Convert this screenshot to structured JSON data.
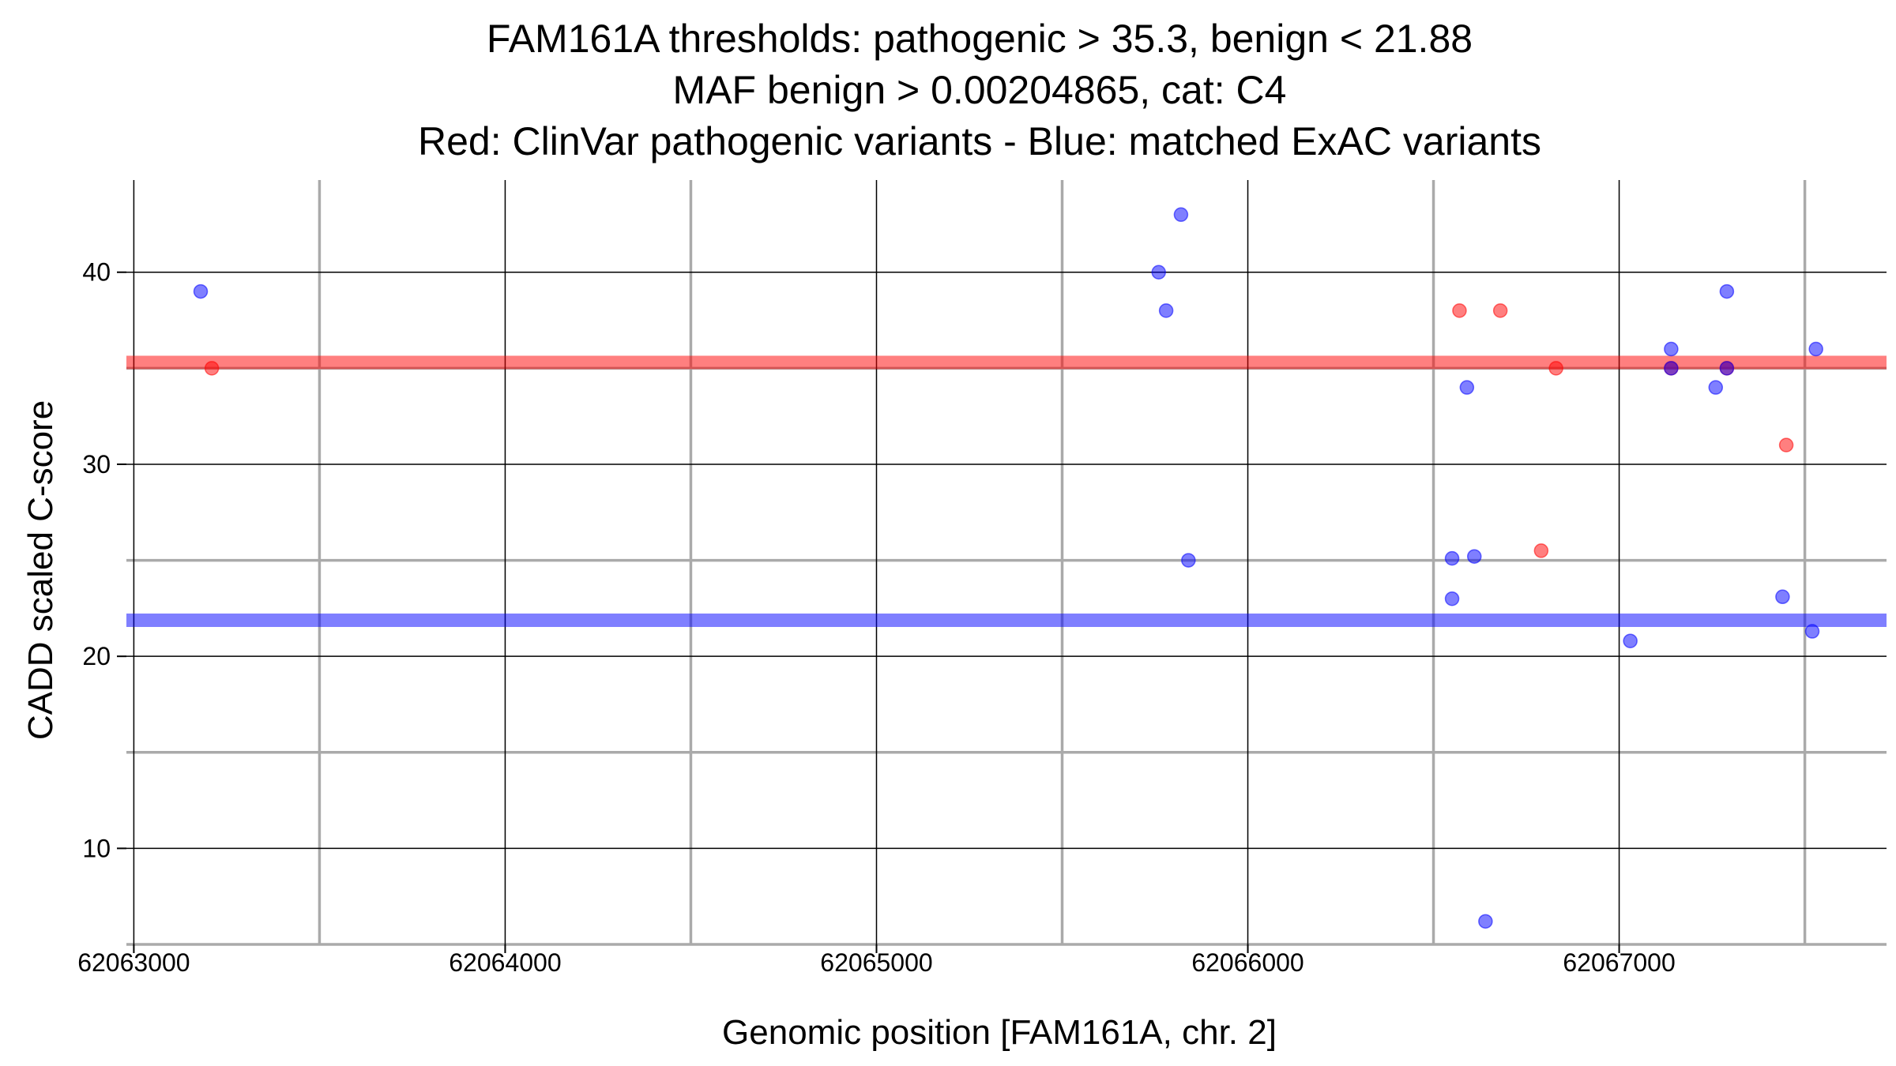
{
  "chart_data": {
    "type": "scatter",
    "title": [
      "FAM161A thresholds: pathogenic > 35.3, benign < 21.88",
      "MAF benign > 0.00204865, cat: C4",
      "Red: ClinVar pathogenic variants - Blue: matched ExAC variants"
    ],
    "xlabel": "Genomic position [FAM161A, chr. 2]",
    "ylabel": "CADD scaled C-score",
    "xlim": [
      62062980,
      62067720
    ],
    "ylim": [
      5,
      44.8
    ],
    "x_ticks": [
      62063000,
      62064000,
      62065000,
      62066000,
      62067000
    ],
    "x_tick_labels": [
      "62063000",
      "62064000",
      "62065000",
      "62066000",
      "62067000"
    ],
    "x_minor_grid": [
      62063500,
      62064500,
      62065500,
      62066500,
      62067500
    ],
    "y_ticks": [
      10,
      20,
      30,
      40
    ],
    "y_tick_labels": [
      "10",
      "20",
      "30",
      "40"
    ],
    "y_minor_grid": [
      5,
      15,
      25,
      35
    ],
    "grid": true,
    "thresholds": [
      {
        "name": "pathogenic",
        "value": 35.3,
        "color": "#ff0000"
      },
      {
        "name": "benign",
        "value": 21.88,
        "color": "#0000ff"
      }
    ],
    "series": [
      {
        "name": "ClinVar pathogenic variants",
        "color": "#ff0000",
        "points": [
          {
            "x": 62063210,
            "y": 35
          },
          {
            "x": 62066570,
            "y": 38
          },
          {
            "x": 62066680,
            "y": 38
          },
          {
            "x": 62066790,
            "y": 25.5
          },
          {
            "x": 62066830,
            "y": 35
          },
          {
            "x": 62067140,
            "y": 35
          },
          {
            "x": 62067290,
            "y": 35
          },
          {
            "x": 62067450,
            "y": 31
          }
        ]
      },
      {
        "name": "matched ExAC variants",
        "color": "#0000ff",
        "points": [
          {
            "x": 62063180,
            "y": 39
          },
          {
            "x": 62065760,
            "y": 40
          },
          {
            "x": 62065780,
            "y": 38
          },
          {
            "x": 62065820,
            "y": 43
          },
          {
            "x": 62065840,
            "y": 25
          },
          {
            "x": 62066550,
            "y": 25.1
          },
          {
            "x": 62066550,
            "y": 23
          },
          {
            "x": 62066590,
            "y": 34
          },
          {
            "x": 62066610,
            "y": 25.2
          },
          {
            "x": 62066640,
            "y": 6.2
          },
          {
            "x": 62067030,
            "y": 20.8
          },
          {
            "x": 62067140,
            "y": 36
          },
          {
            "x": 62067140,
            "y": 35
          },
          {
            "x": 62067260,
            "y": 34
          },
          {
            "x": 62067290,
            "y": 39
          },
          {
            "x": 62067290,
            "y": 35
          },
          {
            "x": 62067440,
            "y": 23.1
          },
          {
            "x": 62067520,
            "y": 21.3
          },
          {
            "x": 62067530,
            "y": 36
          }
        ]
      }
    ]
  }
}
